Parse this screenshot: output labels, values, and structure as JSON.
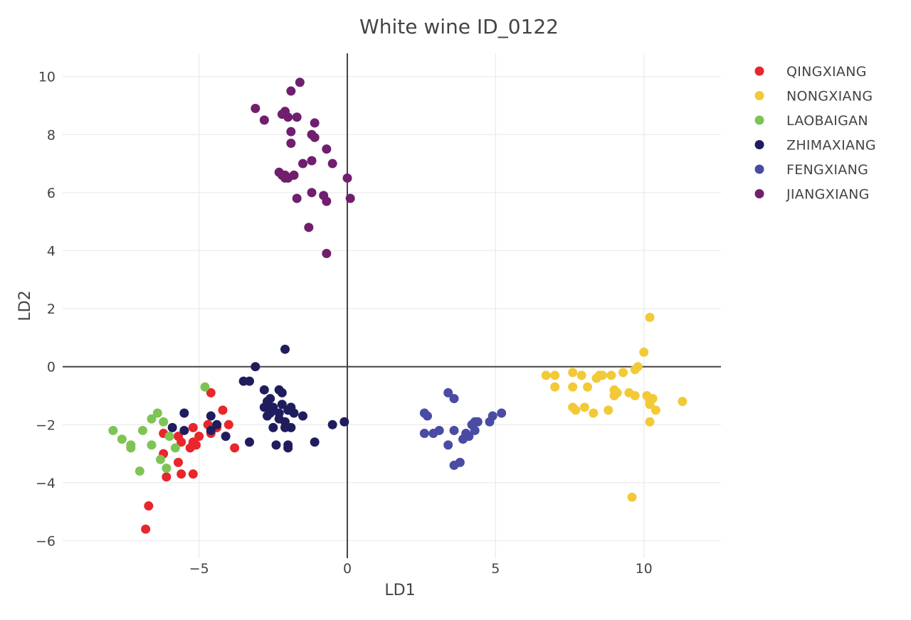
{
  "chart_data": {
    "type": "scatter",
    "title": "White wine ID_0122",
    "xlabel": "LD1",
    "ylabel": "LD2",
    "xlim": [
      -9.6,
      12.6
    ],
    "ylim": [
      -6.6,
      10.8
    ],
    "xticks": [
      -5,
      0,
      5,
      10
    ],
    "xtick_labels": [
      "−5",
      "0",
      "5",
      "10"
    ],
    "yticks": [
      -6,
      -4,
      -2,
      0,
      2,
      4,
      6,
      8,
      10
    ],
    "ytick_labels": [
      "−6",
      "−4",
      "−2",
      "0",
      "2",
      "4",
      "6",
      "8",
      "10"
    ],
    "grid": true,
    "zero_lines": true,
    "legend_position": "top-right",
    "series": [
      {
        "name": "QINGXIANG",
        "color": "#e8262b",
        "points": [
          [
            -4.6,
            -0.9
          ],
          [
            -4.2,
            -1.5
          ],
          [
            -4.0,
            -2.0
          ],
          [
            -4.4,
            -2.1
          ],
          [
            -4.7,
            -2.0
          ],
          [
            -4.6,
            -2.3
          ],
          [
            -5.0,
            -2.4
          ],
          [
            -5.2,
            -2.1
          ],
          [
            -5.2,
            -2.6
          ],
          [
            -5.1,
            -2.7
          ],
          [
            -5.3,
            -2.8
          ],
          [
            -5.6,
            -2.6
          ],
          [
            -5.7,
            -2.4
          ],
          [
            -6.2,
            -2.3
          ],
          [
            -6.2,
            -3.0
          ],
          [
            -5.7,
            -3.3
          ],
          [
            -5.6,
            -3.7
          ],
          [
            -5.2,
            -3.7
          ],
          [
            -6.1,
            -3.8
          ],
          [
            -6.7,
            -4.8
          ],
          [
            -6.8,
            -5.6
          ],
          [
            -3.8,
            -2.8
          ]
        ]
      },
      {
        "name": "NONGXIANG",
        "color": "#f2c937",
        "points": [
          [
            10.2,
            1.7
          ],
          [
            10.0,
            0.5
          ],
          [
            9.8,
            0.0
          ],
          [
            9.7,
            -0.1
          ],
          [
            9.3,
            -0.2
          ],
          [
            8.9,
            -0.3
          ],
          [
            8.6,
            -0.3
          ],
          [
            8.4,
            -0.4
          ],
          [
            8.5,
            -0.3
          ],
          [
            7.9,
            -0.3
          ],
          [
            7.6,
            -0.2
          ],
          [
            7.0,
            -0.3
          ],
          [
            6.7,
            -0.3
          ],
          [
            7.6,
            -0.7
          ],
          [
            7.0,
            -0.7
          ],
          [
            8.1,
            -0.7
          ],
          [
            9.0,
            -0.8
          ],
          [
            9.1,
            -0.9
          ],
          [
            9.5,
            -0.9
          ],
          [
            9.7,
            -1.0
          ],
          [
            10.1,
            -1.0
          ],
          [
            10.3,
            -1.1
          ],
          [
            10.2,
            -1.2
          ],
          [
            11.3,
            -1.2
          ],
          [
            10.2,
            -1.3
          ],
          [
            8.0,
            -1.4
          ],
          [
            7.6,
            -1.4
          ],
          [
            7.7,
            -1.5
          ],
          [
            8.3,
            -1.6
          ],
          [
            8.8,
            -1.5
          ],
          [
            10.4,
            -1.5
          ],
          [
            10.2,
            -1.9
          ],
          [
            9.6,
            -4.5
          ],
          [
            9.0,
            -1.0
          ]
        ]
      },
      {
        "name": "LAOBAIGAN",
        "color": "#7dc454",
        "points": [
          [
            -4.8,
            -0.7
          ],
          [
            -6.4,
            -1.6
          ],
          [
            -6.6,
            -1.8
          ],
          [
            -6.2,
            -1.9
          ],
          [
            -6.9,
            -2.2
          ],
          [
            -7.9,
            -2.2
          ],
          [
            -7.6,
            -2.5
          ],
          [
            -6.0,
            -2.4
          ],
          [
            -6.6,
            -2.7
          ],
          [
            -7.3,
            -2.7
          ],
          [
            -7.3,
            -2.8
          ],
          [
            -5.8,
            -2.8
          ],
          [
            -7.0,
            -3.6
          ],
          [
            -6.1,
            -3.5
          ],
          [
            -6.3,
            -3.2
          ]
        ]
      },
      {
        "name": "ZHIMAXIANG",
        "color": "#1f1d5e",
        "points": [
          [
            -2.1,
            0.6
          ],
          [
            -3.1,
            0.0
          ],
          [
            -3.5,
            -0.5
          ],
          [
            -3.3,
            -0.5
          ],
          [
            -2.8,
            -0.8
          ],
          [
            -2.3,
            -0.8
          ],
          [
            -2.2,
            -0.9
          ],
          [
            -2.7,
            -1.2
          ],
          [
            -2.6,
            -1.1
          ],
          [
            -2.8,
            -1.4
          ],
          [
            -2.5,
            -1.4
          ],
          [
            -2.2,
            -1.3
          ],
          [
            -1.9,
            -1.4
          ],
          [
            -2.6,
            -1.6
          ],
          [
            -2.3,
            -1.6
          ],
          [
            -2.0,
            -1.5
          ],
          [
            -1.8,
            -1.6
          ],
          [
            -1.5,
            -1.7
          ],
          [
            -2.7,
            -1.7
          ],
          [
            -2.3,
            -1.8
          ],
          [
            -2.1,
            -1.9
          ],
          [
            -4.6,
            -1.7
          ],
          [
            -5.5,
            -1.6
          ],
          [
            -4.6,
            -2.2
          ],
          [
            -4.4,
            -2.0
          ],
          [
            -5.5,
            -2.2
          ],
          [
            -5.9,
            -2.1
          ],
          [
            -2.5,
            -2.1
          ],
          [
            -2.1,
            -2.1
          ],
          [
            -1.9,
            -2.1
          ],
          [
            -0.5,
            -2.0
          ],
          [
            -0.1,
            -1.9
          ],
          [
            -4.1,
            -2.4
          ],
          [
            -3.3,
            -2.6
          ],
          [
            -2.4,
            -2.7
          ],
          [
            -2.0,
            -2.7
          ],
          [
            -1.1,
            -2.6
          ],
          [
            -2.0,
            -2.8
          ]
        ]
      },
      {
        "name": "FENGXIANG",
        "color": "#4a4ba2",
        "points": [
          [
            3.4,
            -0.9
          ],
          [
            3.6,
            -1.1
          ],
          [
            2.6,
            -1.6
          ],
          [
            2.7,
            -1.7
          ],
          [
            5.2,
            -1.6
          ],
          [
            4.9,
            -1.7
          ],
          [
            4.4,
            -1.9
          ],
          [
            4.3,
            -1.9
          ],
          [
            4.2,
            -2.0
          ],
          [
            4.8,
            -1.9
          ],
          [
            3.1,
            -2.2
          ],
          [
            3.6,
            -2.2
          ],
          [
            2.6,
            -2.3
          ],
          [
            2.9,
            -2.3
          ],
          [
            4.1,
            -2.4
          ],
          [
            3.9,
            -2.5
          ],
          [
            3.4,
            -2.7
          ],
          [
            3.8,
            -3.3
          ],
          [
            3.6,
            -3.4
          ],
          [
            4.3,
            -2.2
          ],
          [
            4.0,
            -2.3
          ]
        ]
      },
      {
        "name": "JIANGXIANG",
        "color": "#6f1f6e",
        "points": [
          [
            -1.6,
            9.8
          ],
          [
            -1.9,
            9.5
          ],
          [
            -3.1,
            8.9
          ],
          [
            -2.1,
            8.8
          ],
          [
            -2.2,
            8.7
          ],
          [
            -2.0,
            8.6
          ],
          [
            -1.7,
            8.6
          ],
          [
            -2.8,
            8.5
          ],
          [
            -1.1,
            8.4
          ],
          [
            -1.9,
            8.1
          ],
          [
            -1.2,
            8.0
          ],
          [
            -1.1,
            7.9
          ],
          [
            -1.9,
            7.7
          ],
          [
            -0.7,
            7.5
          ],
          [
            -1.2,
            7.1
          ],
          [
            -1.5,
            7.0
          ],
          [
            -0.5,
            7.0
          ],
          [
            -2.3,
            6.7
          ],
          [
            -2.2,
            6.6
          ],
          [
            -2.1,
            6.5
          ],
          [
            -2.0,
            6.5
          ],
          [
            -1.8,
            6.6
          ],
          [
            -2.1,
            6.6
          ],
          [
            0.0,
            6.5
          ],
          [
            -1.2,
            6.0
          ],
          [
            -0.8,
            5.9
          ],
          [
            -0.7,
            5.7
          ],
          [
            -1.7,
            5.8
          ],
          [
            0.1,
            5.8
          ],
          [
            -1.3,
            4.8
          ],
          [
            -0.7,
            3.9
          ]
        ]
      }
    ]
  }
}
